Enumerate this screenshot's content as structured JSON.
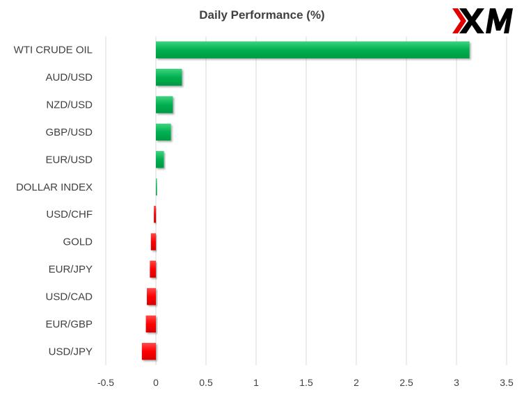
{
  "chart_data": {
    "type": "bar",
    "orientation": "horizontal",
    "title": "Daily Performance  (%)",
    "xlabel": "",
    "ylabel": "",
    "categories": [
      "WTI CRUDE OIL",
      "AUD/USD",
      "NZD/USD",
      "GBP/USD",
      "EUR/USD",
      "DOLLAR INDEX",
      "USD/CHF",
      "GOLD",
      "EUR/JPY",
      "USD/CAD",
      "EUR/GBP",
      "USD/JPY"
    ],
    "values": [
      3.13,
      0.26,
      0.17,
      0.15,
      0.08,
      0.01,
      -0.02,
      -0.05,
      -0.06,
      -0.09,
      -0.1,
      -0.14
    ],
    "xlim": [
      -0.5,
      3.5
    ],
    "xticks": [
      "-0.5",
      "0",
      "0.5",
      "1",
      "1.5",
      "2",
      "2.5",
      "3",
      "3.5"
    ],
    "grid": "vertical",
    "legend": "none",
    "colors": {
      "positive": "#00B050",
      "negative": "#FF0000",
      "grid": "#D9D9D9",
      "text": "#404040"
    }
  },
  "logo": {
    "name": "xm-logo",
    "text": "XM",
    "colors": {
      "mark": "#E10000",
      "letters": "#000000"
    }
  }
}
